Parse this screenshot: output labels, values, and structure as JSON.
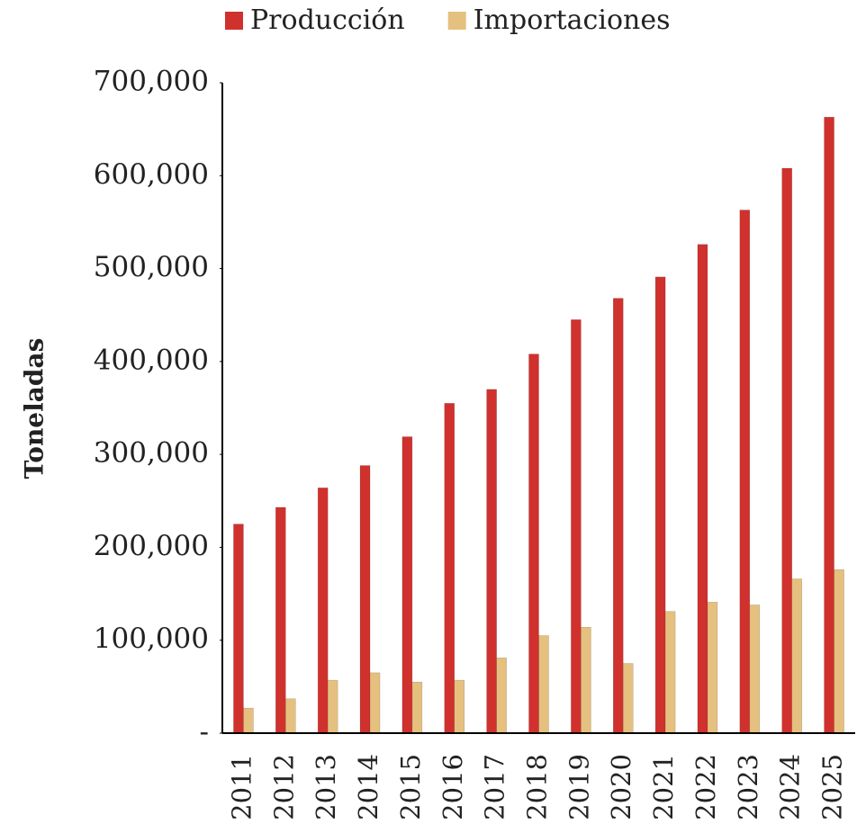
{
  "chart_data": {
    "type": "bar",
    "y_label": "Toneladas",
    "categories": [
      "2011",
      "2012",
      "2013",
      "2014",
      "2015",
      "2016",
      "2017",
      "2018",
      "2019",
      "2020",
      "2021",
      "2022",
      "2023",
      "2024",
      "2025"
    ],
    "series": [
      {
        "name": "Producción",
        "color": "#d0312d",
        "values": [
          225000,
          243000,
          264000,
          288000,
          319000,
          355000,
          370000,
          408000,
          445000,
          468000,
          491000,
          526000,
          563000,
          608000,
          663000
        ]
      },
      {
        "name": "Importaciones",
        "color": "#e6c07f",
        "values": [
          27000,
          37000,
          57000,
          65000,
          55000,
          57000,
          81000,
          105000,
          114000,
          75000,
          131000,
          141000,
          138000,
          166000,
          176000
        ]
      }
    ],
    "ylim": [
      0,
      700000
    ],
    "yticks": [
      {
        "value": 0,
        "label": "-"
      },
      {
        "value": 100000,
        "label": "100,000"
      },
      {
        "value": 200000,
        "label": "200,000"
      },
      {
        "value": 300000,
        "label": "300,000"
      },
      {
        "value": 400000,
        "label": "400,000"
      },
      {
        "value": 500000,
        "label": "500,000"
      },
      {
        "value": 600000,
        "label": "600,000"
      },
      {
        "value": 700000,
        "label": "700,000"
      }
    ],
    "legend": "top"
  }
}
